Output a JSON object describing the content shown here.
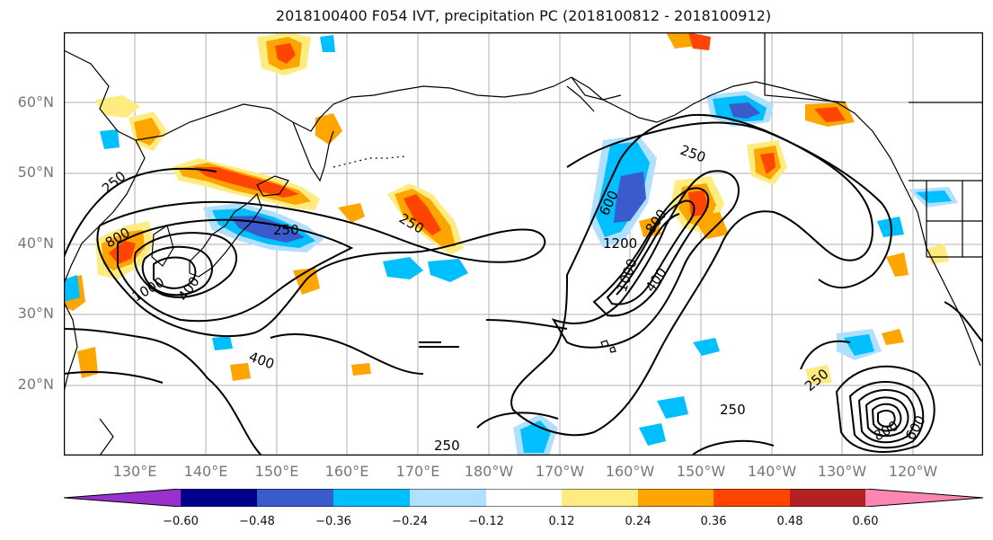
{
  "title": "2018100400 F054 IVT, precipitation PC (2018100812 - 2018100912)",
  "lat_labels": [
    "60°N",
    "50°N",
    "40°N",
    "30°N",
    "20°N"
  ],
  "lon_labels": [
    "130°E",
    "140°E",
    "150°E",
    "160°E",
    "170°E",
    "180°W",
    "170°W",
    "160°W",
    "150°W",
    "140°W",
    "130°W",
    "120°W"
  ],
  "contour_labels": [
    {
      "text": "250"
    },
    {
      "text": "250"
    },
    {
      "text": "250"
    },
    {
      "text": "250"
    },
    {
      "text": "250"
    },
    {
      "text": "250"
    },
    {
      "text": "250"
    },
    {
      "text": "400"
    },
    {
      "text": "400"
    },
    {
      "text": "600"
    },
    {
      "text": "800"
    },
    {
      "text": "1200"
    },
    {
      "text": "1000"
    },
    {
      "text": "800"
    },
    {
      "text": "1000"
    },
    {
      "text": "400"
    },
    {
      "text": "800"
    },
    {
      "text": "600"
    }
  ],
  "colorbar": {
    "ticks": [
      "−0.60",
      "−0.48",
      "−0.36",
      "−0.24",
      "−0.12",
      "0.12",
      "0.24",
      "0.36",
      "0.48",
      "0.60"
    ],
    "colors": [
      "#9932CC",
      "#00008B",
      "#3A5BCC",
      "#00BFFF",
      "#B0E0FF",
      "#FFFFFF",
      "#FFEC80",
      "#FFA500",
      "#FF4500",
      "#B22222",
      "#FF85B3"
    ]
  }
}
